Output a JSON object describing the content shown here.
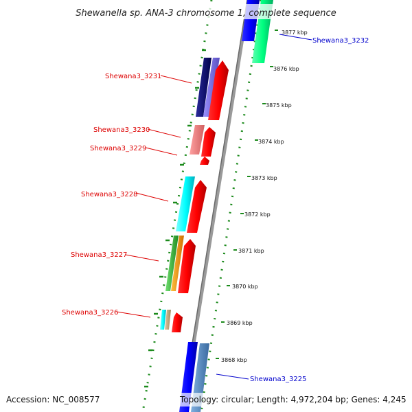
{
  "title": "Shewanella sp. ANA-3 chromosome 1, complete sequence",
  "accession": "Accession: NC_008577",
  "topology": "Topology: circular; Length: 4,972,204 bp; Genes: 4,245",
  "colors": {
    "backbone": "#8a8a8a",
    "dotted_ring": "#1b8a1b",
    "minor_tick": "#1b8a1b",
    "left_label": "#dd0000",
    "right_label": "#0000cc",
    "leader_left": "#dd0000",
    "leader_right": "#0000cc"
  },
  "ticks": [
    {
      "kbp": 3877,
      "label": "3877 kbp"
    },
    {
      "kbp": 3876,
      "label": "3876 kbp"
    },
    {
      "kbp": 3875,
      "label": "3875 kbp"
    },
    {
      "kbp": 3874,
      "label": "3874 kbp"
    },
    {
      "kbp": 3873,
      "label": "3873 kbp"
    },
    {
      "kbp": 3872,
      "label": "3872 kbp"
    },
    {
      "kbp": 3871,
      "label": "3871 kbp"
    },
    {
      "kbp": 3870,
      "label": "3870 kbp"
    },
    {
      "kbp": 3869,
      "label": "3869 kbp"
    },
    {
      "kbp": 3868,
      "label": "3868 kbp"
    }
  ],
  "gene_labels": [
    {
      "name": "Shewana3_3232",
      "side": "right"
    },
    {
      "name": "Shewana3_3231",
      "side": "left"
    },
    {
      "name": "Shewana3_3230",
      "side": "left"
    },
    {
      "name": "Shewana3_3229",
      "side": "left"
    },
    {
      "name": "Shewana3_3228",
      "side": "left"
    },
    {
      "name": "Shewana3_3227",
      "side": "left"
    },
    {
      "name": "Shewana3_3226",
      "side": "left"
    },
    {
      "name": "Shewana3_3225",
      "side": "right"
    }
  ]
}
